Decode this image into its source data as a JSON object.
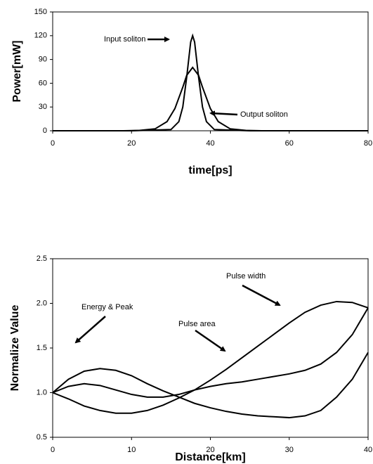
{
  "chart_data": [
    {
      "type": "line",
      "xlabel": "time[ps]",
      "ylabel": "Power[mW]",
      "xlim": [
        0,
        80
      ],
      "xticks": [
        0,
        20,
        40,
        60,
        80
      ],
      "ylim": [
        0,
        150
      ],
      "yticks": [
        0,
        30,
        60,
        90,
        120,
        150
      ],
      "series": [
        {
          "name": "Input soliton",
          "color": "#000000",
          "x": [
            0,
            20,
            30,
            32,
            33,
            34,
            35,
            35.5,
            36,
            37,
            38,
            39,
            41,
            50,
            80
          ],
          "values": [
            0,
            0,
            1.5,
            11.5,
            30,
            68,
            112,
            120,
            112,
            68,
            30,
            11.5,
            1.5,
            0,
            0
          ]
        },
        {
          "name": "Output soliton",
          "color": "#000000",
          "x": [
            0,
            18,
            22,
            26,
            29,
            31,
            33,
            34,
            35.5,
            37,
            38,
            40,
            42,
            45,
            49,
            53,
            80
          ],
          "values": [
            0,
            0,
            0.4,
            2.5,
            11.5,
            28,
            55,
            70,
            80,
            70,
            55,
            28,
            11.5,
            2.5,
            0.4,
            0,
            0
          ]
        }
      ]
    },
    {
      "type": "line",
      "xlabel": "Distance[km]",
      "ylabel": "Normalize Value",
      "xlim": [
        0,
        40
      ],
      "xticks": [
        0,
        10,
        20,
        30,
        40
      ],
      "ylim": [
        0.5,
        2.5
      ],
      "yticks": [
        0.5,
        {
          "value": 1,
          "label": "1.0"
        },
        1.5,
        {
          "value": 2,
          "label": "2.0"
        },
        2.5
      ],
      "series": [
        {
          "name": "Pulse width",
          "color": "#000000",
          "x": [
            0,
            2,
            4,
            6,
            8,
            10,
            12,
            14,
            16,
            18,
            20,
            22,
            24,
            26,
            28,
            30,
            32,
            34,
            36,
            38,
            40
          ],
          "values": [
            1.0,
            0.93,
            0.85,
            0.8,
            0.77,
            0.77,
            0.8,
            0.86,
            0.94,
            1.03,
            1.14,
            1.26,
            1.39,
            1.52,
            1.65,
            1.78,
            1.9,
            1.98,
            2.02,
            2.01,
            1.95
          ]
        },
        {
          "name": "Energy & Peak",
          "color": "#000000",
          "x": [
            0,
            2,
            4,
            6,
            8,
            10,
            12,
            14,
            16,
            18,
            20,
            22,
            24,
            26,
            28,
            30,
            32,
            34,
            36,
            38,
            40
          ],
          "values": [
            1.0,
            1.15,
            1.24,
            1.27,
            1.25,
            1.19,
            1.1,
            1.02,
            0.95,
            0.88,
            0.83,
            0.79,
            0.76,
            0.74,
            0.73,
            0.72,
            0.74,
            0.8,
            0.95,
            1.15,
            1.45
          ]
        },
        {
          "name": "Pulse area",
          "color": "#000000",
          "x": [
            0,
            2,
            4,
            6,
            8,
            10,
            12,
            14,
            16,
            18,
            20,
            22,
            24,
            26,
            28,
            30,
            32,
            34,
            36,
            38,
            40
          ],
          "values": [
            1.0,
            1.07,
            1.1,
            1.08,
            1.03,
            0.98,
            0.95,
            0.95,
            0.98,
            1.03,
            1.07,
            1.1,
            1.12,
            1.15,
            1.18,
            1.21,
            1.25,
            1.32,
            1.45,
            1.65,
            1.95
          ]
        }
      ]
    }
  ]
}
